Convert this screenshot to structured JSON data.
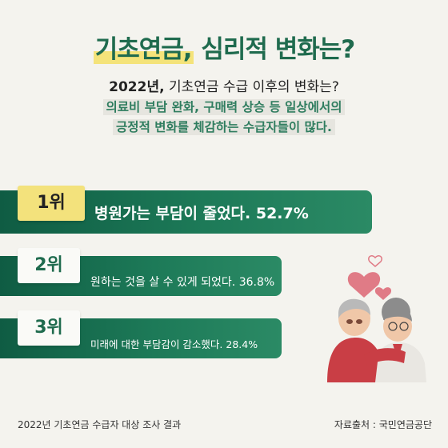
{
  "title": {
    "highlight": "기초연금,",
    "rest": " 심리적 변화는?"
  },
  "subtitle": {
    "year": "2022년,",
    "rest": " 기초연금 수급 이후의 변화는?"
  },
  "description": {
    "line1": "의료비 부담 완화, 구매력 상승 등 일상에서의",
    "line2": "긍정적 변화를 체감하는 수급자들이 많다."
  },
  "rankings": [
    {
      "rank": "1위",
      "text": "병원가는 부담이 줄었다. 52.7%"
    },
    {
      "rank": "2위",
      "text": "원하는 것을 살 수 있게 되었다. 36.8%"
    },
    {
      "rank": "3위",
      "text": "미래에 대한 부담감이 감소했다. 28.4%"
    }
  ],
  "footer": {
    "left": "2022년 기초연금 수급자 대상 조사 결과",
    "right": "자료출처 : 국민연금공단"
  },
  "colors": {
    "brand_green": "#1f6b4e",
    "highlight_yellow": "#f3e27c",
    "heart": "#e07b86"
  },
  "illustration": "elderly-couple-hugging-with-hearts"
}
